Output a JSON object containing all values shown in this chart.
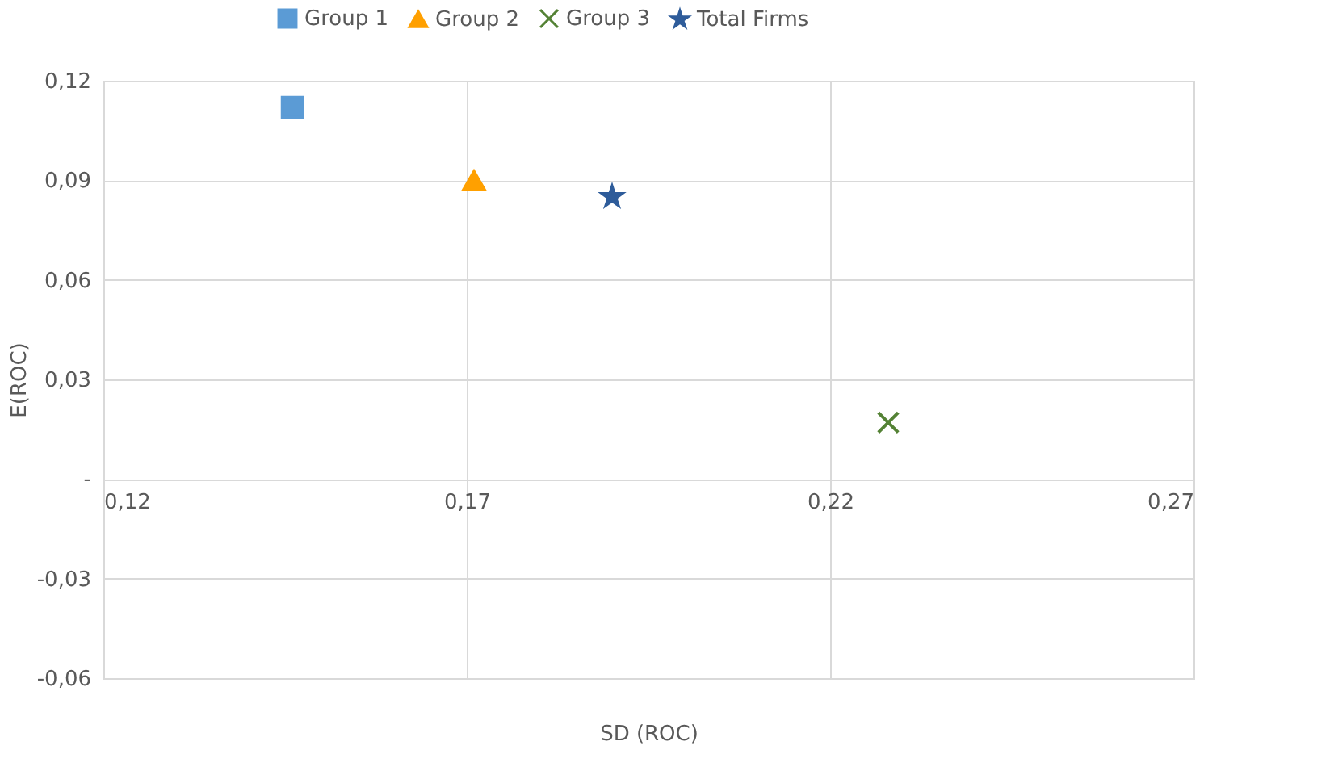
{
  "chart_data": {
    "type": "scatter",
    "xlabel": "SD (ROC)",
    "ylabel": "E(ROC)",
    "series": [
      {
        "name": "Group 1",
        "color": "#5b9bd5",
        "marker": "square",
        "x": [
          0.146
        ],
        "values": [
          0.112
        ]
      },
      {
        "name": "Group 2",
        "color": "#ffa000",
        "marker": "triangle",
        "x": [
          0.171
        ],
        "values": [
          0.09
        ]
      },
      {
        "name": "Group 3",
        "color": "#548235",
        "marker": "cross",
        "x": [
          0.228
        ],
        "values": [
          0.017
        ]
      },
      {
        "name": "Total Firms",
        "color": "#2e5c9a",
        "marker": "star",
        "x": [
          0.19
        ],
        "values": [
          0.085
        ]
      }
    ],
    "xlim": [
      0.12,
      0.27
    ],
    "xticks": [
      {
        "value": 0.12,
        "label": "0,12"
      },
      {
        "value": 0.17,
        "label": "0,17"
      },
      {
        "value": 0.22,
        "label": "0,22"
      },
      {
        "value": 0.27,
        "label": "0,27"
      }
    ],
    "ylim": [
      -0.06,
      0.12
    ],
    "yticks": [
      {
        "value": -0.06,
        "label": "-0,06"
      },
      {
        "value": -0.03,
        "label": "-0,03"
      },
      {
        "value": 0,
        "label": "-"
      },
      {
        "value": 0.03,
        "label": "0,03"
      },
      {
        "value": 0.06,
        "label": "0,06"
      },
      {
        "value": 0.09,
        "label": "0,09"
      },
      {
        "value": 0.12,
        "label": "0,12"
      }
    ],
    "grid": true,
    "legend": "top"
  }
}
